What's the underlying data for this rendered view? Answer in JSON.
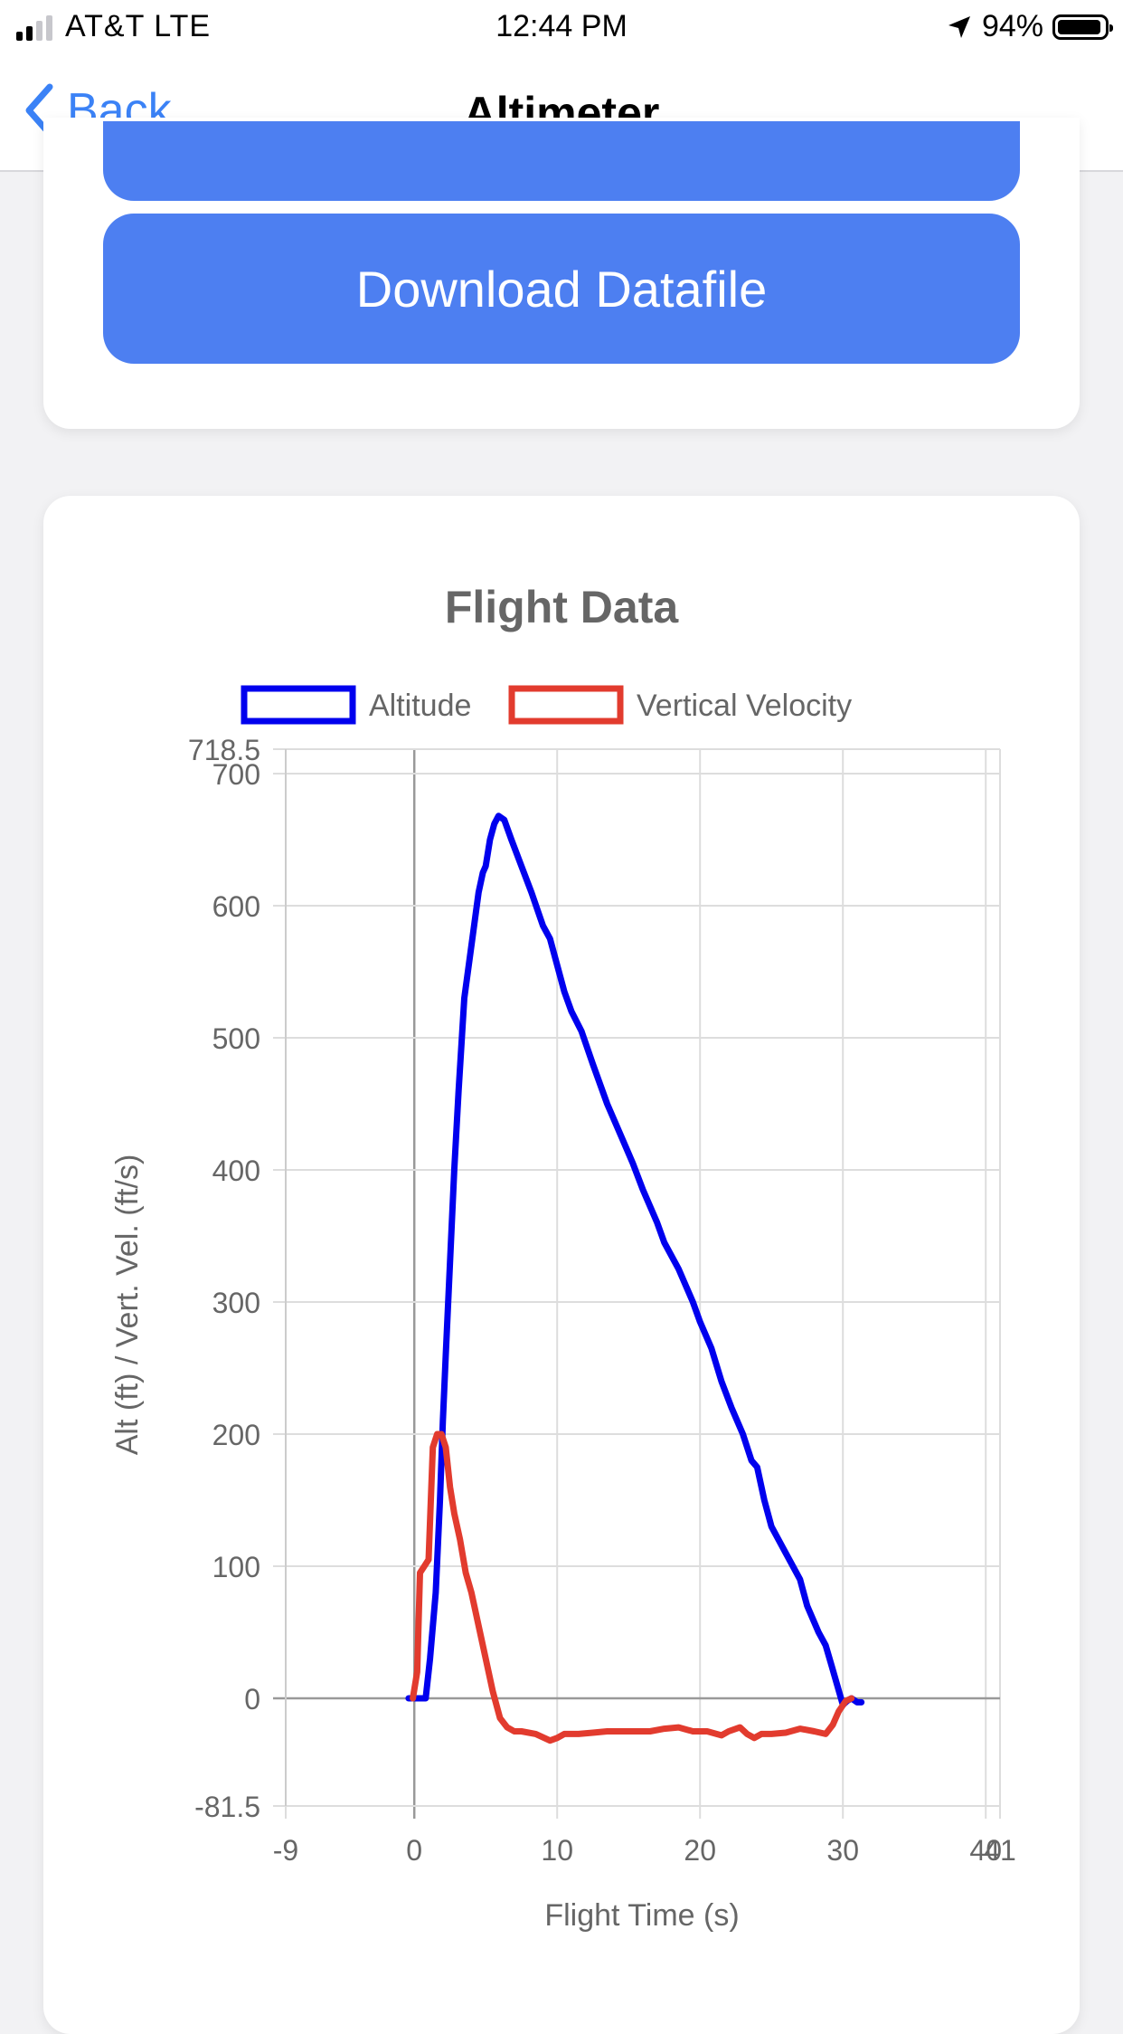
{
  "status_bar": {
    "carrier": "AT&T  LTE",
    "time": "12:44 PM",
    "battery": "94%",
    "battery_level": 0.94,
    "signal_bars": 2
  },
  "nav": {
    "back_label": "Back",
    "title": "Altimeter"
  },
  "actions": {
    "download_label": "Download Datafile"
  },
  "colors": {
    "accent": "#4d7ff1",
    "altitude": "#0000ee",
    "velocity": "#e23b2e"
  },
  "chart_data": {
    "type": "line",
    "title": "Flight Data",
    "xlabel": "Flight Time (s)",
    "ylabel": "Alt (ft) / Vert. Vel. (ft/s)",
    "xlim": [
      -9,
      41
    ],
    "ylim": [
      -81.5,
      718.5
    ],
    "x_ticks": [
      -9,
      0,
      10,
      20,
      30,
      40,
      41
    ],
    "x_tick_labels": [
      "-9",
      "0",
      "10",
      "20",
      "30",
      "40",
      "41"
    ],
    "y_ticks": [
      -81.5,
      0,
      100,
      200,
      300,
      400,
      500,
      600,
      700,
      718.5
    ],
    "y_tick_labels": [
      "-81.5",
      "0",
      "100",
      "200",
      "300",
      "400",
      "500",
      "600",
      "700",
      "718.5"
    ],
    "grid": true,
    "legend": "top",
    "series": [
      {
        "name": "Altitude",
        "color": "#0000ee",
        "x": [
          -0.4,
          0.4,
          0.8,
          1.1,
          1.5,
          1.8,
          2.0,
          2.2,
          2.5,
          2.8,
          3.1,
          3.5,
          4.0,
          4.5,
          4.8,
          5.0,
          5.3,
          5.6,
          5.9,
          6.3,
          6.8,
          7.5,
          8.2,
          9.0,
          9.5,
          10.0,
          10.5,
          11.0,
          11.7,
          12.5,
          13.5,
          14.5,
          15.3,
          16.0,
          17.0,
          17.5,
          18.5,
          19.5,
          20.0,
          20.8,
          21.5,
          22.2,
          23.0,
          23.6,
          24.0,
          24.5,
          25.0,
          26.0,
          27.0,
          27.5,
          28.3,
          28.8,
          29.2,
          29.6,
          30.0,
          30.3,
          30.6,
          31.0,
          31.3
        ],
        "y": [
          0,
          0,
          0,
          30,
          80,
          150,
          210,
          260,
          330,
          400,
          460,
          530,
          570,
          610,
          625,
          630,
          650,
          662,
          668,
          665,
          650,
          630,
          610,
          585,
          575,
          555,
          535,
          520,
          505,
          480,
          450,
          425,
          405,
          385,
          360,
          345,
          325,
          300,
          285,
          265,
          240,
          220,
          200,
          180,
          175,
          150,
          130,
          110,
          90,
          70,
          50,
          40,
          25,
          10,
          -5,
          -2,
          0,
          -3,
          -3
        ]
      },
      {
        "name": "Vertical Velocity",
        "color": "#e23b2e",
        "x": [
          -0.1,
          0.2,
          0.4,
          0.7,
          1.0,
          1.3,
          1.6,
          1.9,
          2.2,
          2.5,
          2.8,
          3.2,
          3.6,
          4.0,
          4.5,
          5.0,
          5.5,
          6.0,
          6.5,
          7.0,
          7.5,
          8.5,
          9.5,
          10.0,
          10.5,
          11.5,
          12.5,
          13.5,
          15.0,
          16.5,
          17.5,
          18.5,
          19.5,
          20.5,
          21.5,
          22.0,
          22.8,
          23.3,
          23.8,
          24.3,
          25.0,
          26.0,
          27.0,
          28.0,
          28.8,
          29.3,
          29.7,
          30.2,
          30.6
        ],
        "y": [
          0,
          20,
          95,
          100,
          105,
          190,
          200,
          200,
          190,
          160,
          140,
          120,
          95,
          80,
          55,
          30,
          5,
          -15,
          -22,
          -25,
          -25,
          -27,
          -32,
          -30,
          -27,
          -27,
          -26,
          -25,
          -25,
          -25,
          -23,
          -22,
          -25,
          -25,
          -28,
          -25,
          -22,
          -27,
          -30,
          -27,
          -27,
          -26,
          -23,
          -25,
          -27,
          -20,
          -10,
          -2,
          0
        ]
      }
    ]
  }
}
